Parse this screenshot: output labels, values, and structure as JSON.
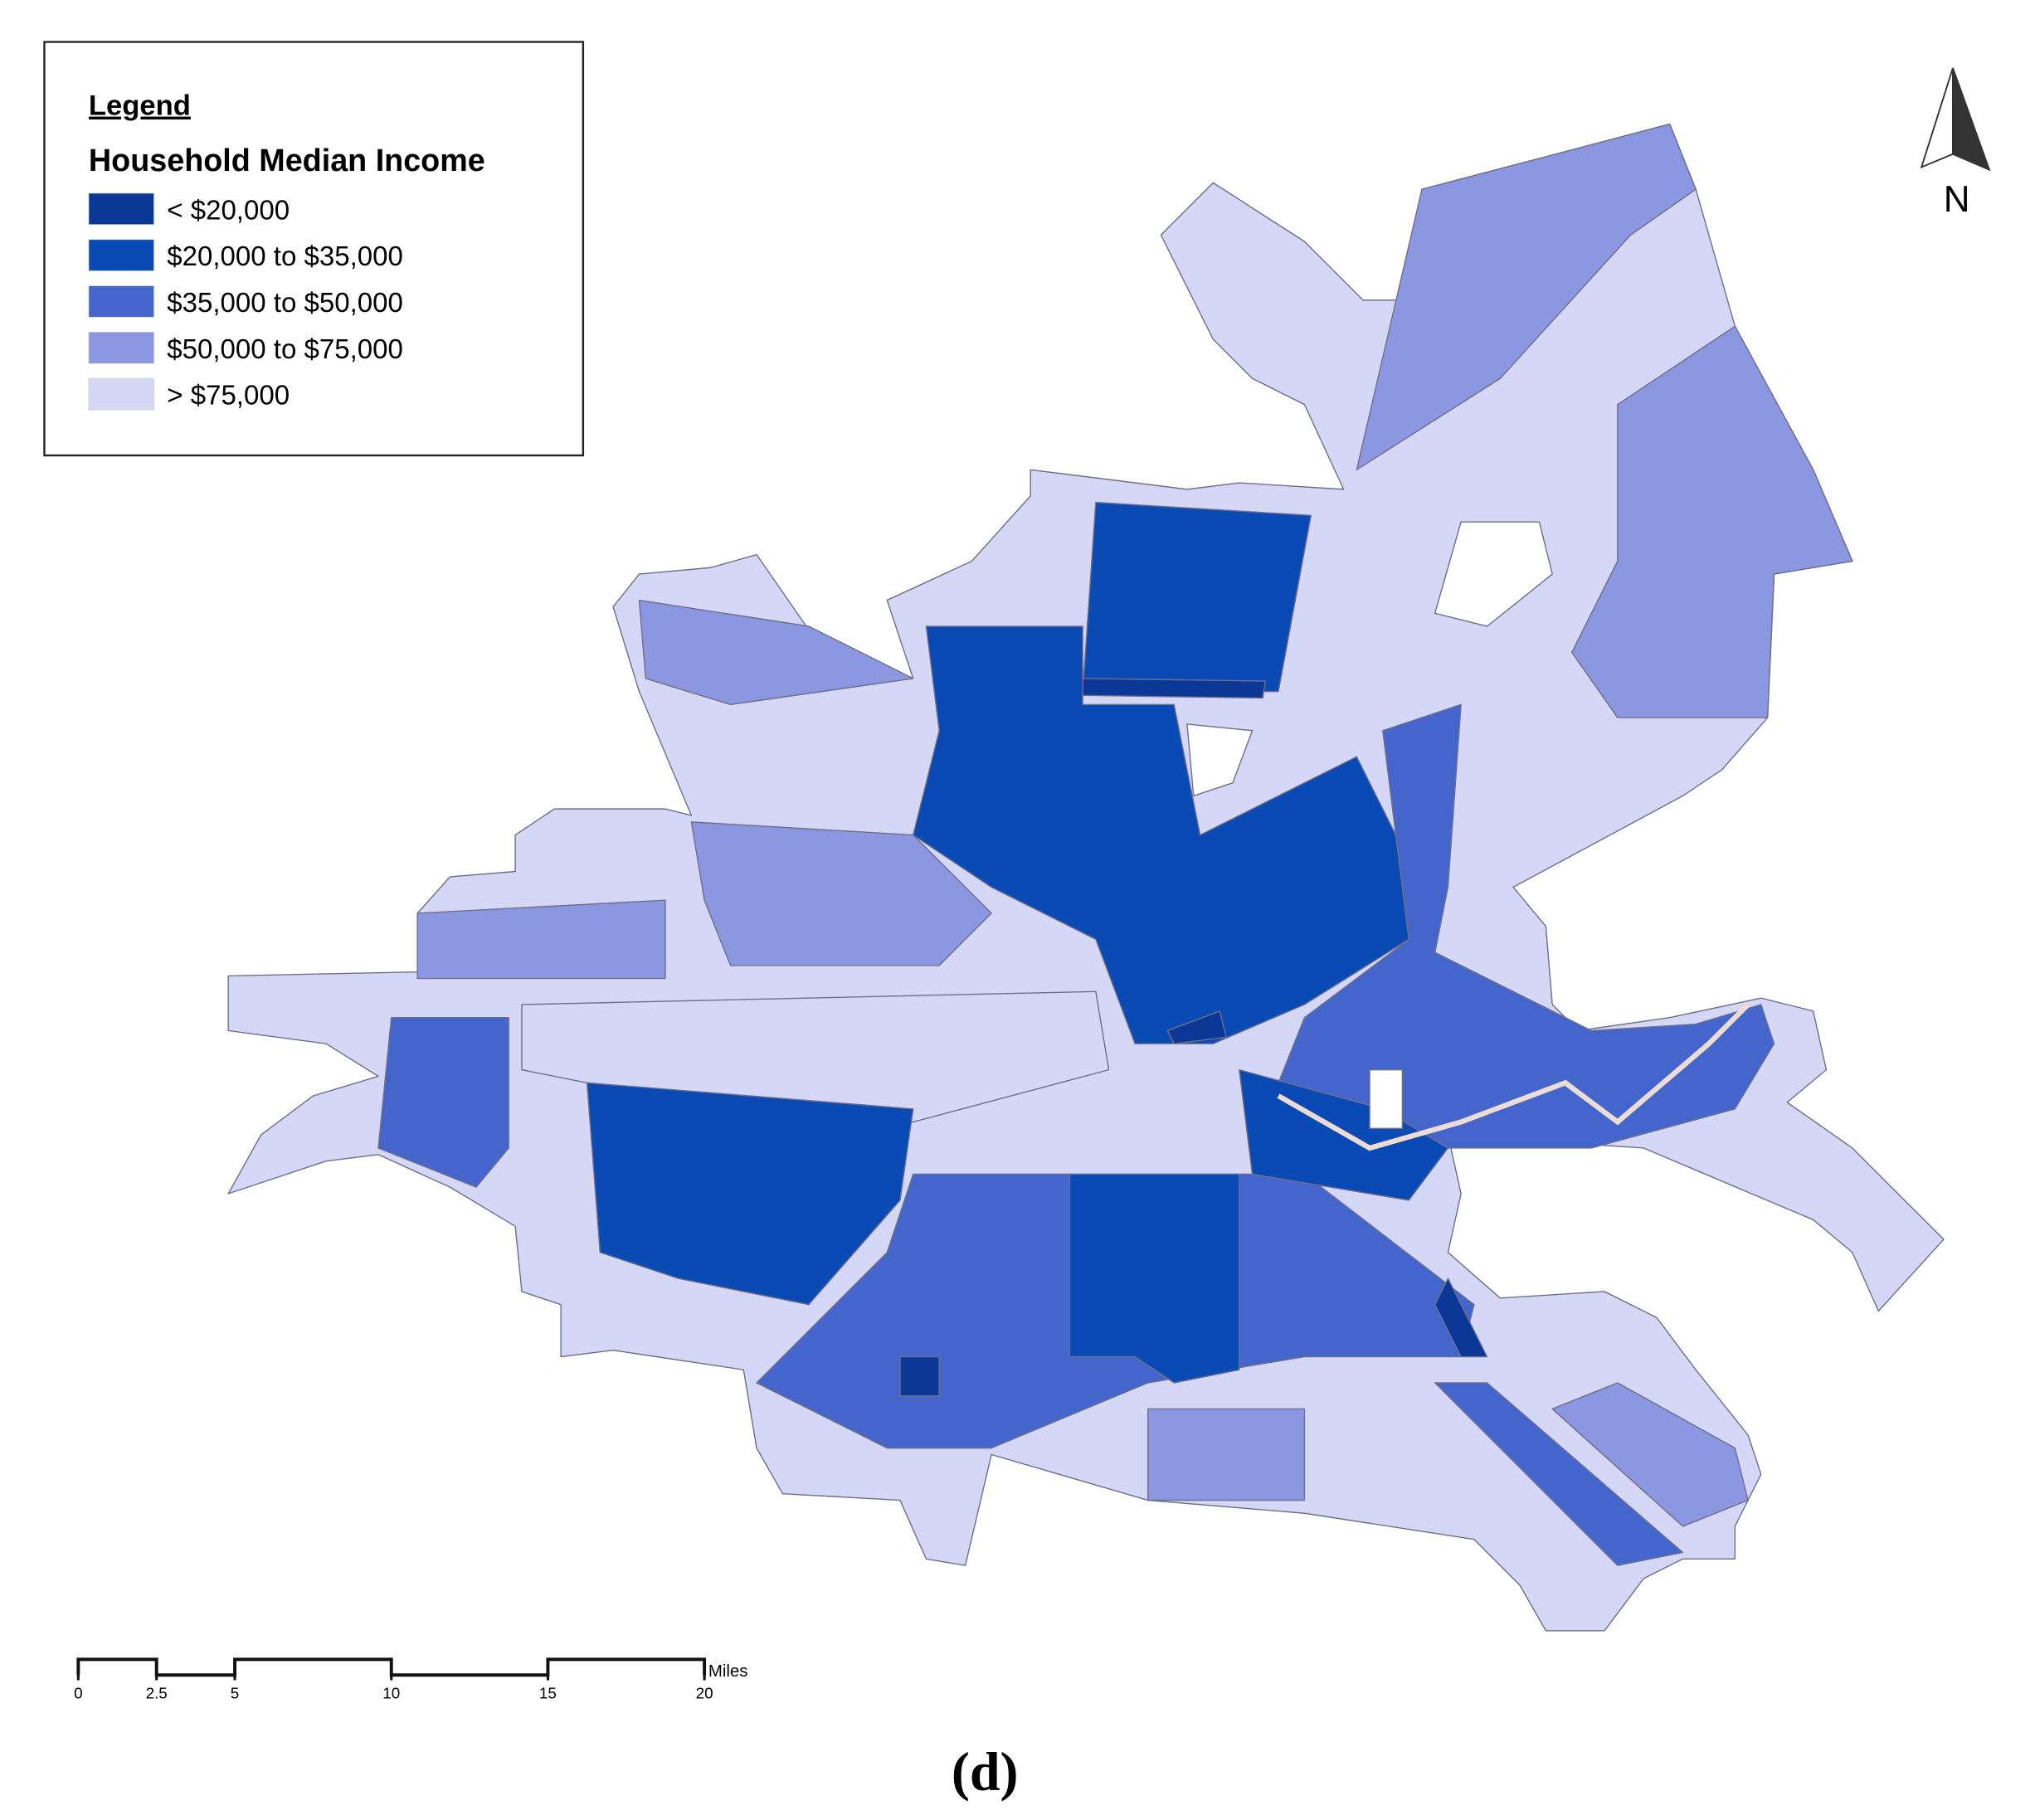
{
  "legend": {
    "heading": "Legend",
    "title": "Household Median Income",
    "items": [
      {
        "label": "< $20,000",
        "color": "#0b3796"
      },
      {
        "label": "$20,000 to $35,000",
        "color": "#0a4ab4"
      },
      {
        "label": "$35,000 to $50,000",
        "color": "#4466cc"
      },
      {
        "label": "$50,000 to $75,000",
        "color": "#8b97e0"
      },
      {
        "label": "> $75,000",
        "color": "#d5d7f6"
      }
    ]
  },
  "north_arrow": {
    "label": "N"
  },
  "scale_bar": {
    "unit": "Miles",
    "ticks": [
      0,
      2.5,
      5,
      10,
      15,
      20
    ]
  },
  "caption": "(d)"
}
